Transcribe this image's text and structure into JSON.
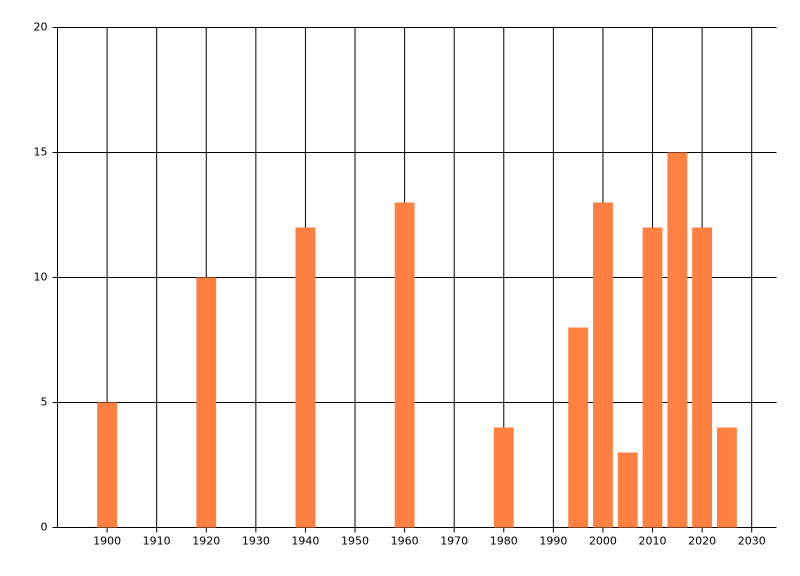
{
  "chart_data": {
    "type": "bar",
    "x": [
      1900,
      1920,
      1940,
      1960,
      1980,
      1995,
      2000,
      2005,
      2010,
      2015,
      2020,
      2025
    ],
    "values": [
      5,
      10,
      12,
      13,
      4,
      8,
      13,
      3,
      12,
      15,
      12,
      4
    ],
    "color": "#ff8040",
    "xlim": [
      1890,
      2035
    ],
    "xticks": [
      1900,
      1910,
      1920,
      1930,
      1940,
      1950,
      1960,
      1970,
      1980,
      1990,
      2000,
      2010,
      2020,
      2030
    ],
    "ylim": [
      0,
      20
    ],
    "yticks": [
      0,
      5,
      10,
      15,
      20
    ],
    "grid": true
  }
}
